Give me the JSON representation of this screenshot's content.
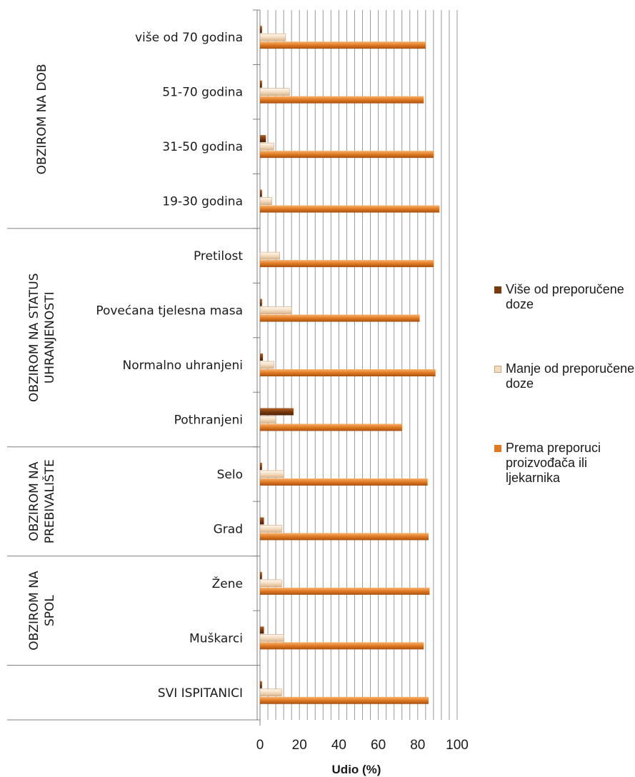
{
  "chart_data": {
    "type": "bar",
    "orientation": "horizontal",
    "xlabel": "Udio (%)",
    "xlim": [
      0,
      100
    ],
    "xticks": [
      "0",
      "20",
      "40",
      "60",
      "80",
      "100"
    ],
    "grid": "vertical",
    "legend_position": "right",
    "categories": [
      "više od 70 godina",
      "51-70 godina",
      "31-50 godina",
      "19-30 godina",
      "Pretilost",
      "Povećana tjelesna masa",
      "Normalno uhranjeni",
      "Pothranjeni",
      "Selo",
      "Grad",
      "Žene",
      "Muškarci",
      "SVI ISPITANICI"
    ],
    "groups": [
      {
        "label": "OBZIROM NA DOB",
        "from": 0,
        "to": 3
      },
      {
        "label": "OBZIROM NA STATUS UHRANJENOSTI",
        "from": 4,
        "to": 7
      },
      {
        "label": "OBZIROM NA PREBIVALIŠTE",
        "from": 8,
        "to": 9
      },
      {
        "label": "OBZIROM NA SPOL",
        "from": 10,
        "to": 11
      },
      {
        "label": "",
        "from": 12,
        "to": 12
      }
    ],
    "series": [
      {
        "name": "Više od preporučene doze",
        "color": "#7a3a10",
        "values": [
          1,
          1,
          3,
          1,
          0,
          1,
          1.5,
          17,
          1,
          2,
          1,
          2,
          1
        ]
      },
      {
        "name": "Manje od preporučene doze",
        "color": "#f3dcc0",
        "values": [
          13,
          15,
          7,
          6,
          10,
          16,
          7,
          8,
          12,
          11,
          11,
          12,
          11
        ]
      },
      {
        "name": "Prema preporuci proizvođača ili ljekarnika",
        "color": "#e07a22",
        "values": [
          84,
          83,
          88,
          91,
          88,
          81,
          89,
          72,
          85,
          85.5,
          86,
          83,
          85.5
        ]
      }
    ]
  },
  "legend": {
    "items": [
      {
        "label": "Više od preporučene doze",
        "color": "#7a3a10"
      },
      {
        "label": "Manje od preporučene doze",
        "color": "#f3dcc0"
      },
      {
        "label": "Prema preporuci proizvođača ili ljekarnika",
        "color": "#e07a22"
      }
    ]
  }
}
